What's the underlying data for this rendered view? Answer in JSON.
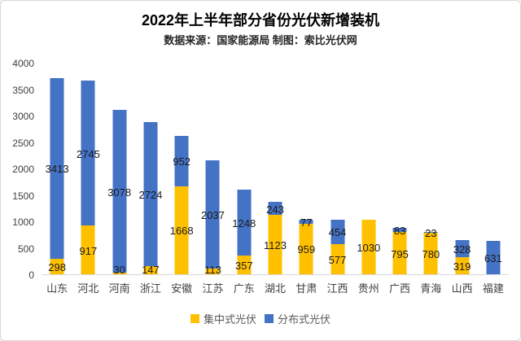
{
  "chart_data": {
    "type": "bar",
    "stacked": true,
    "title": "2022年上半年部分省份光伏新增装机",
    "subtitle": "数据来源：国家能源局  制图：索比光伏网",
    "categories": [
      "山东",
      "河北",
      "河南",
      "浙江",
      "安徽",
      "江苏",
      "广东",
      "湖北",
      "甘肃",
      "江西",
      "贵州",
      "广西",
      "青海",
      "山西",
      "福建"
    ],
    "series": [
      {
        "name": "集中式光伏",
        "color": "#FFC000",
        "values": [
          298,
          917,
          30,
          147,
          1668,
          113,
          357,
          1123,
          959,
          577,
          1030,
          795,
          780,
          319,
          0
        ]
      },
      {
        "name": "分布式光伏",
        "color": "#4472C4",
        "values": [
          3413,
          2745,
          3078,
          2724,
          952,
          2037,
          1248,
          243,
          77,
          454,
          0,
          83,
          23,
          328,
          631
        ]
      }
    ],
    "xlabel": "",
    "ylabel": "",
    "ylim": [
      0,
      4000
    ],
    "yticks": [
      0,
      500,
      1000,
      1500,
      2000,
      2500,
      3000,
      3500,
      4000
    ],
    "grid": false,
    "legend_position": "bottom",
    "data_labels": true
  }
}
